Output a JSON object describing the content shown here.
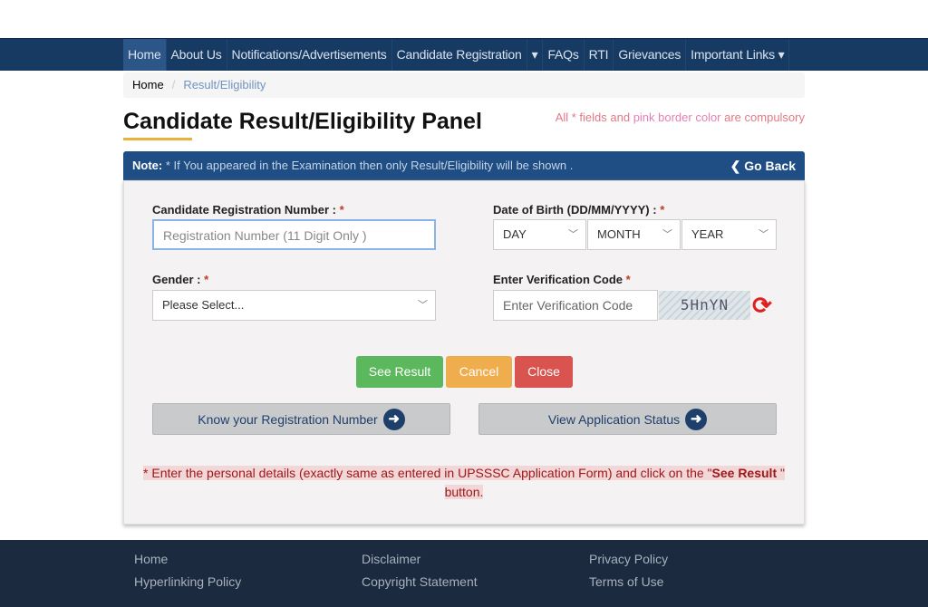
{
  "nav": {
    "items": [
      "Home",
      "About Us",
      "Notifications/Advertisements",
      "Candidate Registration",
      "FAQs",
      "RTI",
      "Grievances",
      "Important Links"
    ],
    "dropdown_icon": "▾"
  },
  "breadcrumb": {
    "home": "Home",
    "current": "Result/Eligibility"
  },
  "page": {
    "title": "Candidate Result/Eligibility Panel",
    "required_note_a": "All * fields and ",
    "required_note_pink": "pink border color",
    "required_note_b": " are compulsory"
  },
  "note": {
    "label": "Note:",
    "text": " * If You appeared in the Examination then only Result/Eligibility will be shown .",
    "go_back": "Go Back"
  },
  "form": {
    "reg_label": "Candidate Registration Number :",
    "reg_placeholder": "Registration Number (11 Digit Only )",
    "dob_label": "Date of Birth (DD/MM/YYYY) :",
    "day": "DAY",
    "month": "MONTH",
    "year": "YEAR",
    "gender_label": "Gender :",
    "gender_value": "Please Select...",
    "code_label": "Enter Verification Code",
    "code_placeholder": "Enter Verification Code",
    "captcha": "5HnYN",
    "star": "*"
  },
  "buttons": {
    "see_result": "See Result",
    "cancel": "Cancel",
    "close": "Close",
    "know_reg": "Know your Registration Number",
    "view_status": "View Application Status"
  },
  "message": {
    "text": "* Enter the personal details (exactly same as entered in UPSSSC Application Form) and click on the \"",
    "bold": "See Result",
    "end": " \" button."
  },
  "footer": {
    "links": [
      "Home",
      "Hyperlinking Policy",
      "Disclaimer",
      "Copyright Statement",
      "Privacy Policy",
      "Terms of Use"
    ]
  },
  "colors": {
    "nav": "#173a63",
    "note": "#1f4e84",
    "success": "#5cb85c",
    "warning": "#f0ad4e",
    "danger": "#d9534f",
    "footer": "#1b2a3e"
  }
}
